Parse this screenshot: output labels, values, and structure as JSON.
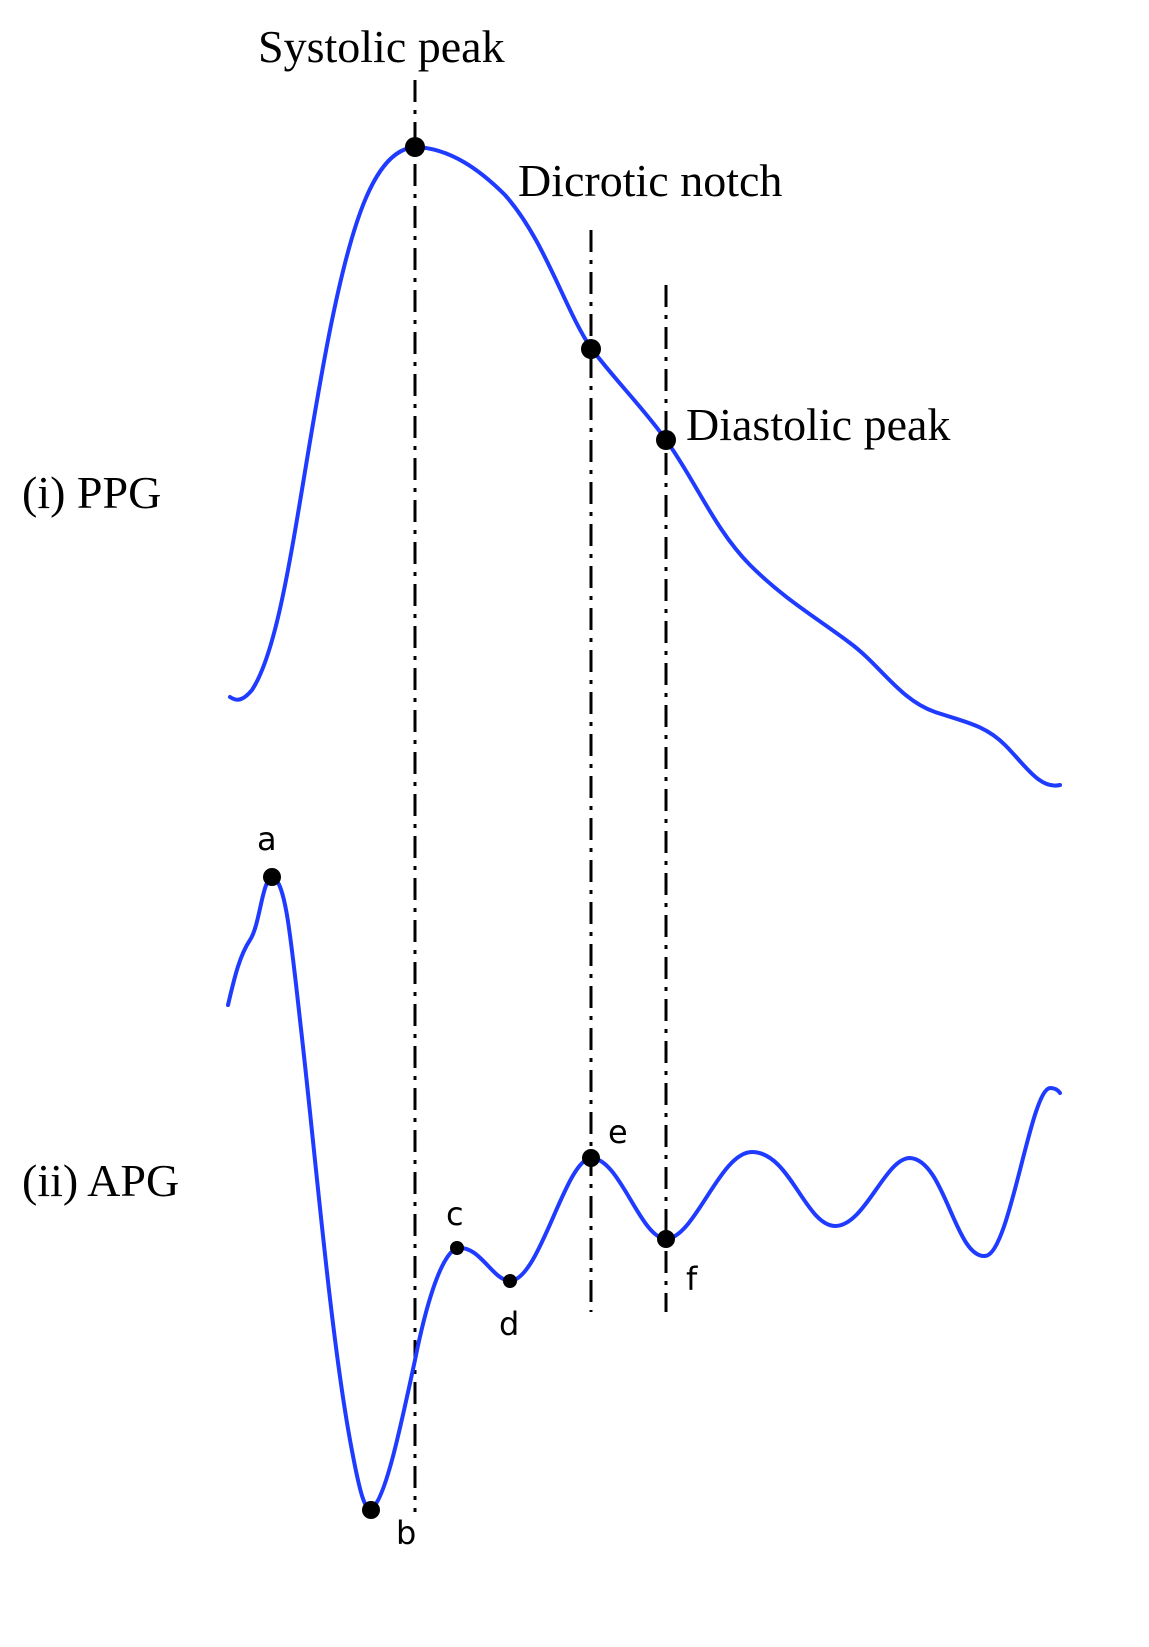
{
  "annotations": {
    "systolic_peak": "Systolic peak",
    "dicrotic_notch": "Dicrotic notch",
    "diastolic_peak": "Diastolic peak"
  },
  "panels": [
    {
      "label": "(i) PPG"
    },
    {
      "label": "(ii) APG"
    }
  ],
  "points": [
    "a",
    "b",
    "c",
    "d",
    "e",
    "f"
  ]
}
